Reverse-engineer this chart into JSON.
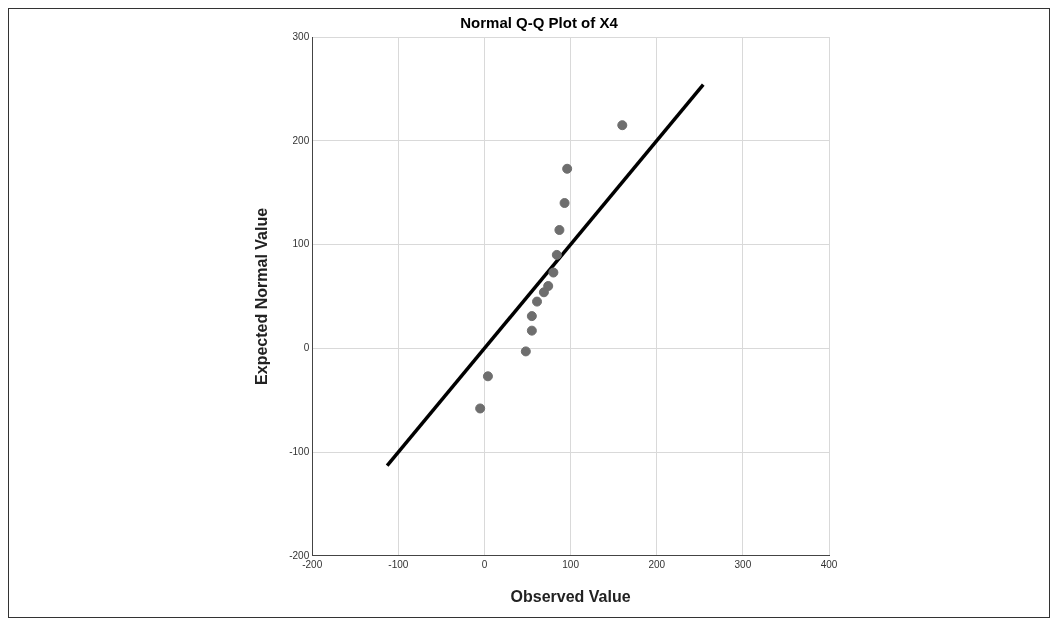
{
  "chart_data": {
    "type": "scatter",
    "title": "Normal Q-Q Plot of X4",
    "xlabel": "Observed Value",
    "ylabel": "Expected Normal Value",
    "xlim": [
      -200,
      400
    ],
    "xticks": [
      -200,
      -100,
      0,
      100,
      200,
      300,
      400
    ],
    "ylim": [
      -200,
      300
    ],
    "yticks": [
      -200,
      -100,
      0,
      100,
      200,
      300
    ],
    "grid": true,
    "legend": false,
    "marker": "circle",
    "series": [
      {
        "type": "scatter",
        "color": "#6e6e6e",
        "x": [
          160,
          96,
          93,
          87,
          84,
          80,
          74,
          69,
          61,
          55,
          55,
          48,
          4,
          -5
        ],
        "values": [
          215,
          173,
          140,
          114,
          90,
          73,
          60,
          54,
          45,
          31,
          17,
          -3,
          -27,
          -58
        ]
      },
      {
        "type": "line",
        "color": "#000000",
        "marker": "none",
        "x": [
          -113,
          254
        ],
        "values": [
          -113,
          254
        ]
      }
    ]
  }
}
